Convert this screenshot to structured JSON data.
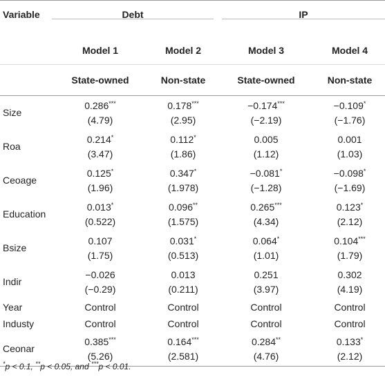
{
  "header": {
    "variable": "Variable",
    "groups": [
      "Debt",
      "IP"
    ],
    "models": [
      "Model 1",
      "Model 2",
      "Model 3",
      "Model 4"
    ],
    "ownership": [
      "State-owned",
      "Non-state",
      "State-owned",
      "Non-state"
    ]
  },
  "table": {
    "rows": [
      {
        "name": "Size",
        "cells": [
          {
            "value": "0.286",
            "stars": "***",
            "t": "(4.79)"
          },
          {
            "value": "0.178",
            "stars": "***",
            "t": "(2.95)"
          },
          {
            "value": "−0.174",
            "stars": "***",
            "t": "(−2.19)"
          },
          {
            "value": "−0.109",
            "stars": "*",
            "t": "(−1.76)"
          }
        ]
      },
      {
        "name": "Roa",
        "cells": [
          {
            "value": "0.214",
            "stars": "*",
            "t": "(3.47)"
          },
          {
            "value": "0.112",
            "stars": "*",
            "t": "(1.86)"
          },
          {
            "value": "0.005",
            "t": "(1.12)"
          },
          {
            "value": "0.001",
            "t": "(1.03)"
          }
        ]
      },
      {
        "name": "Ceoage",
        "cells": [
          {
            "value": "0.125",
            "stars": "*",
            "t": "(1.96)"
          },
          {
            "value": "0.347",
            "stars": "*",
            "t": "(1.978)"
          },
          {
            "value": "−0.081",
            "stars": "*",
            "t": "(−1.28)"
          },
          {
            "value": "−0.098",
            "stars": "*",
            "t": "(−1.69)"
          }
        ]
      },
      {
        "name": "Education",
        "cells": [
          {
            "value": "0.013",
            "stars": "*",
            "t": "(0.522)"
          },
          {
            "value": "0.096",
            "stars": "**",
            "t": "(1.575)"
          },
          {
            "value": "0.265",
            "stars": "***",
            "t": "(4.34)"
          },
          {
            "value": "0.123",
            "stars": "*",
            "t": "(2.12)"
          }
        ]
      },
      {
        "name": "Bsize",
        "cells": [
          {
            "value": "0.107",
            "t": "(1.75)"
          },
          {
            "value": "0.031",
            "stars": "*",
            "t": "(0.513)"
          },
          {
            "value": "0.064",
            "stars": "*",
            "t": "(1.01)"
          },
          {
            "value": "0.104",
            "stars": "***",
            "t": "(1.79)"
          }
        ]
      },
      {
        "name": "Indir",
        "cells": [
          {
            "value": "−0.026",
            "t": "(−0.29)"
          },
          {
            "value": "0.013",
            "t": "(0.211)"
          },
          {
            "value": "0.251",
            "t": "(3.97)"
          },
          {
            "value": "0.302",
            "t": "(4.19)"
          }
        ]
      },
      {
        "name": "Year",
        "cells": [
          {
            "value": "Control"
          },
          {
            "value": "Control"
          },
          {
            "value": "Control"
          },
          {
            "value": "Control"
          }
        ]
      },
      {
        "name": "Industy",
        "cells": [
          {
            "value": "Control"
          },
          {
            "value": "Control"
          },
          {
            "value": "Control"
          },
          {
            "value": "Control"
          }
        ]
      },
      {
        "name": "Ceonar",
        "cells": [
          {
            "value": "0.385",
            "stars": "***",
            "t": "(5.26)"
          },
          {
            "value": "0.164",
            "stars": "***",
            "t": "(2.581)"
          },
          {
            "value": "0.284",
            "stars": "**",
            "t": "(4.76)"
          },
          {
            "value": "0.133",
            "stars": "*",
            "t": "(2.12)"
          }
        ]
      }
    ]
  },
  "footnote": [
    {
      "sup": "*"
    },
    {
      "text": "p < 0.1, "
    },
    {
      "sup": "**"
    },
    {
      "text": "p < 0.05, and "
    },
    {
      "sup": "***"
    },
    {
      "text": "p < 0.01."
    }
  ]
}
